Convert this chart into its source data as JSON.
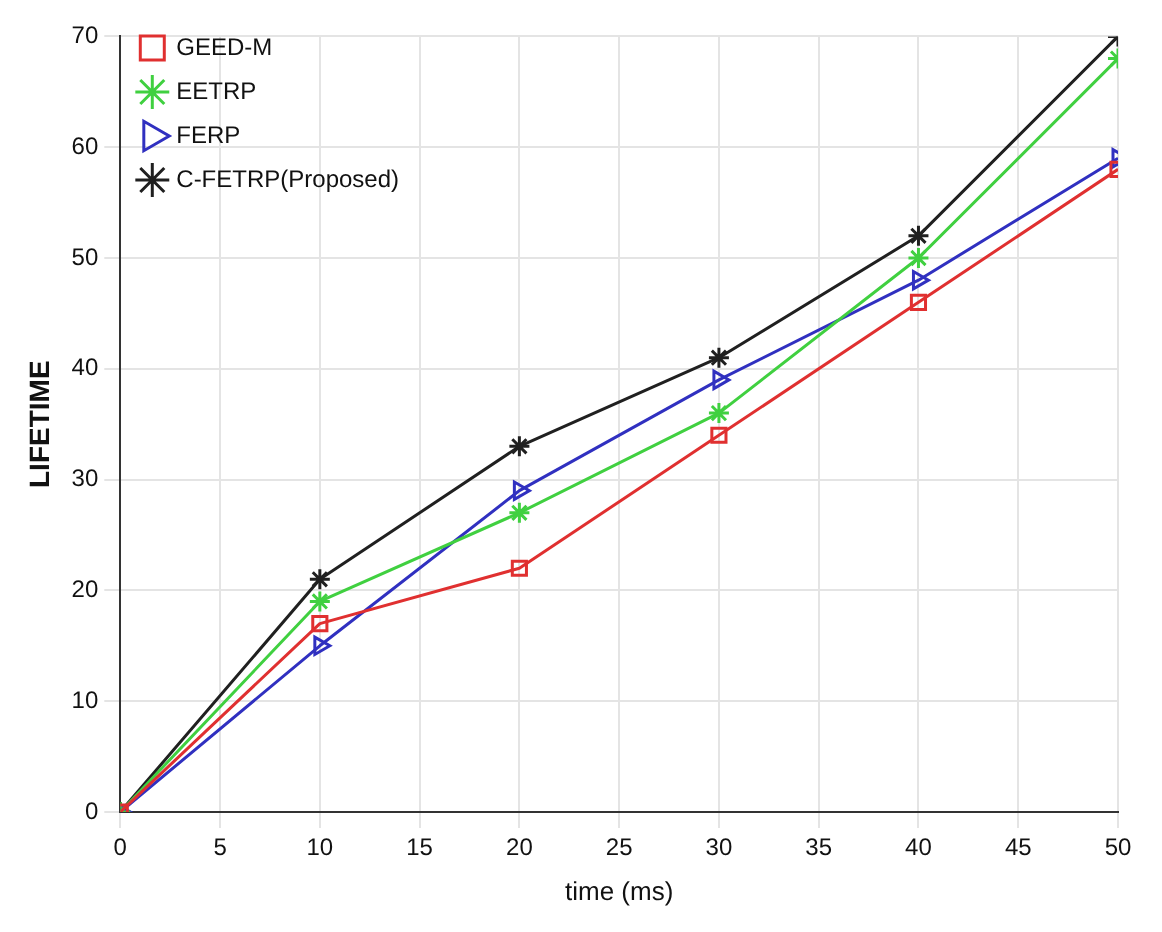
{
  "chart_data": {
    "type": "line",
    "xlabel": "time (ms)",
    "ylabel": "LIFETIME",
    "x": [
      0,
      10,
      20,
      30,
      40,
      50
    ],
    "xlim": [
      0,
      50
    ],
    "xticks": [
      0,
      5,
      10,
      15,
      20,
      25,
      30,
      35,
      40,
      45,
      50
    ],
    "ylim": [
      0,
      70
    ],
    "yticks": [
      0,
      10,
      20,
      30,
      40,
      50,
      60,
      70
    ],
    "grid": true,
    "legend": "top left",
    "series": [
      {
        "name": "GEED-M",
        "color": "#e03030",
        "marker": "square",
        "values": [
          0,
          17,
          22,
          34,
          46,
          58
        ]
      },
      {
        "name": "EETRP",
        "color": "#40d040",
        "marker": "cross",
        "values": [
          0,
          19,
          27,
          36,
          50,
          68
        ]
      },
      {
        "name": "FERP",
        "color": "#3030c0",
        "marker": "triangle",
        "values": [
          0,
          15,
          29,
          39,
          48,
          59
        ]
      },
      {
        "name": "C-FETRP(Proposed)",
        "color": "#202020",
        "marker": "cross",
        "values": [
          0,
          21,
          33,
          41,
          52,
          70
        ]
      }
    ]
  }
}
